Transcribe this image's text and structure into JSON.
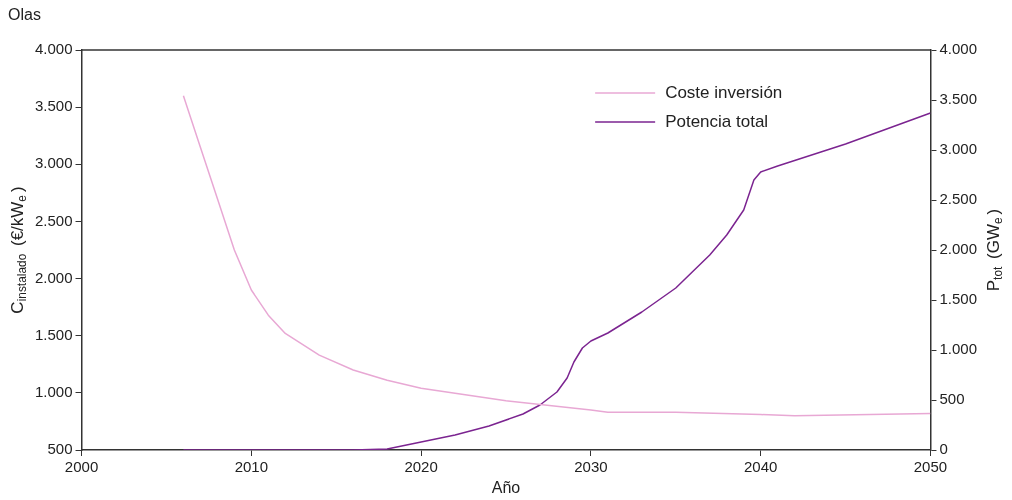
{
  "chart_data": {
    "type": "line",
    "title": "Olas",
    "xlabel": "Año",
    "ylabel": "C$_{instalado}$ (€/kW$_{e}$)",
    "y2label": "P$_{tot}$ (GW$_{e}$)",
    "xlim": [
      2000,
      2050
    ],
    "xticks": [
      2000,
      2010,
      2020,
      2030,
      2040,
      2050
    ],
    "ylim": [
      500,
      4000
    ],
    "yticks": [
      500,
      {
        "value": 1000,
        "label": "1.000"
      },
      {
        "value": 1500,
        "label": "1.500"
      },
      {
        "value": 2000,
        "label": "2.000"
      },
      {
        "value": 2500,
        "label": "2.500"
      },
      {
        "value": 3000,
        "label": "3.000"
      },
      {
        "value": 3500,
        "label": "3.500"
      },
      {
        "value": 4000,
        "label": "4.000"
      }
    ],
    "y2lim": [
      0,
      4000
    ],
    "y2ticks": [
      0,
      500,
      {
        "value": 1000,
        "label": "1.000"
      },
      {
        "value": 1500,
        "label": "1.500"
      },
      {
        "value": 2000,
        "label": "2.000"
      },
      {
        "value": 2500,
        "label": "2.500"
      },
      {
        "value": 3000,
        "label": "3.000"
      },
      {
        "value": 3500,
        "label": "3.500"
      },
      {
        "value": 4000,
        "label": "4.000"
      }
    ],
    "grid": false,
    "legend": "top right",
    "marker": "none",
    "line_style": "solid",
    "series": [
      {
        "name": "Coste inversión",
        "color": "#e8a8d4",
        "x": [
          2006,
          2007,
          2008,
          2009,
          2010,
          2011,
          2012,
          2014,
          2016,
          2018,
          2020,
          2025,
          2030,
          2031,
          2035,
          2040,
          2042,
          2050
        ],
        "values": [
          3600,
          3150,
          2700,
          2250,
          1900,
          1680,
          1520,
          1330,
          1200,
          1110,
          1040,
          930,
          850,
          830,
          830,
          810,
          800,
          820
        ]
      },
      {
        "name": "Potencia total",
        "color": "#7b2490",
        "axis": "y2",
        "x": [
          2006,
          2012,
          2016,
          2018,
          2020,
          2022,
          2024,
          2026,
          2027,
          2028,
          2028.6,
          2029,
          2029.5,
          2030,
          2031,
          2033,
          2035,
          2037,
          2038,
          2039,
          2039.6,
          2040,
          2041,
          2045,
          2050
        ],
        "values": [
          0,
          0,
          0,
          10,
          80,
          150,
          240,
          360,
          450,
          580,
          720,
          880,
          1020,
          1090,
          1170,
          1380,
          1620,
          1950,
          2150,
          2400,
          2700,
          2780,
          2840,
          3060,
          3370
        ]
      }
    ]
  }
}
